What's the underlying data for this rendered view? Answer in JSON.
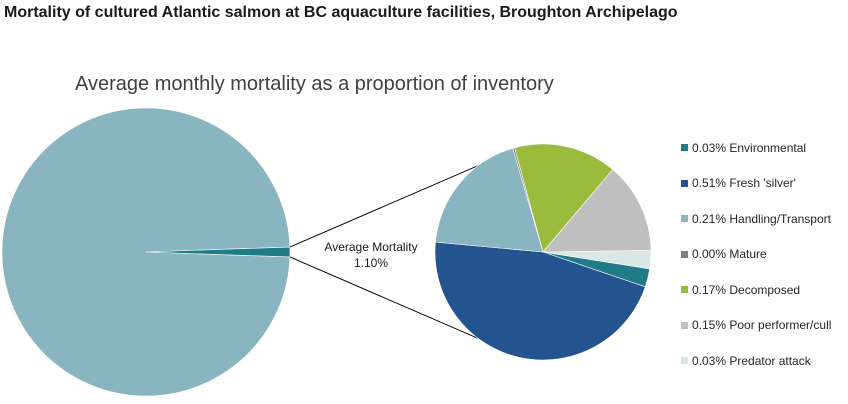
{
  "title": "Mortality of cultured Atlantic salmon at BC aquaculture facilities, Broughton Archipelago",
  "subtitle": "Average monthly mortality as a proportion of inventory",
  "chart_data": {
    "type": "pie",
    "title": "Average monthly mortality as a proportion of inventory",
    "main_pie": {
      "slices": [
        {
          "label": "",
          "value": 98.9,
          "color": "#88b5bf"
        },
        {
          "label": "Average Mortality",
          "value": 1.1,
          "color": "#1f7c86"
        }
      ]
    },
    "callout": {
      "label": "Average Mortality",
      "value_label": "1.10%"
    },
    "breakdown_pie": {
      "slices": [
        {
          "label": "0.03% Environmental",
          "value": 0.03,
          "color": "#1f7c86"
        },
        {
          "label": "0.51% Fresh 'silver'",
          "value": 0.51,
          "color": "#23548f"
        },
        {
          "label": "0.21% Handling/Transport",
          "value": 0.21,
          "color": "#88b5bf"
        },
        {
          "label": "0.00% Mature",
          "value": 0.003,
          "color": "#7f7f7f"
        },
        {
          "label": "0.17% Decomposed",
          "value": 0.17,
          "color": "#9bbb3c"
        },
        {
          "label": "0.15% Poor performer/cull",
          "value": 0.15,
          "color": "#bfbfbf"
        },
        {
          "label": "0.03% Predator attack",
          "value": 0.03,
          "color": "#d9e7e7"
        }
      ]
    },
    "legend_position": "right"
  }
}
